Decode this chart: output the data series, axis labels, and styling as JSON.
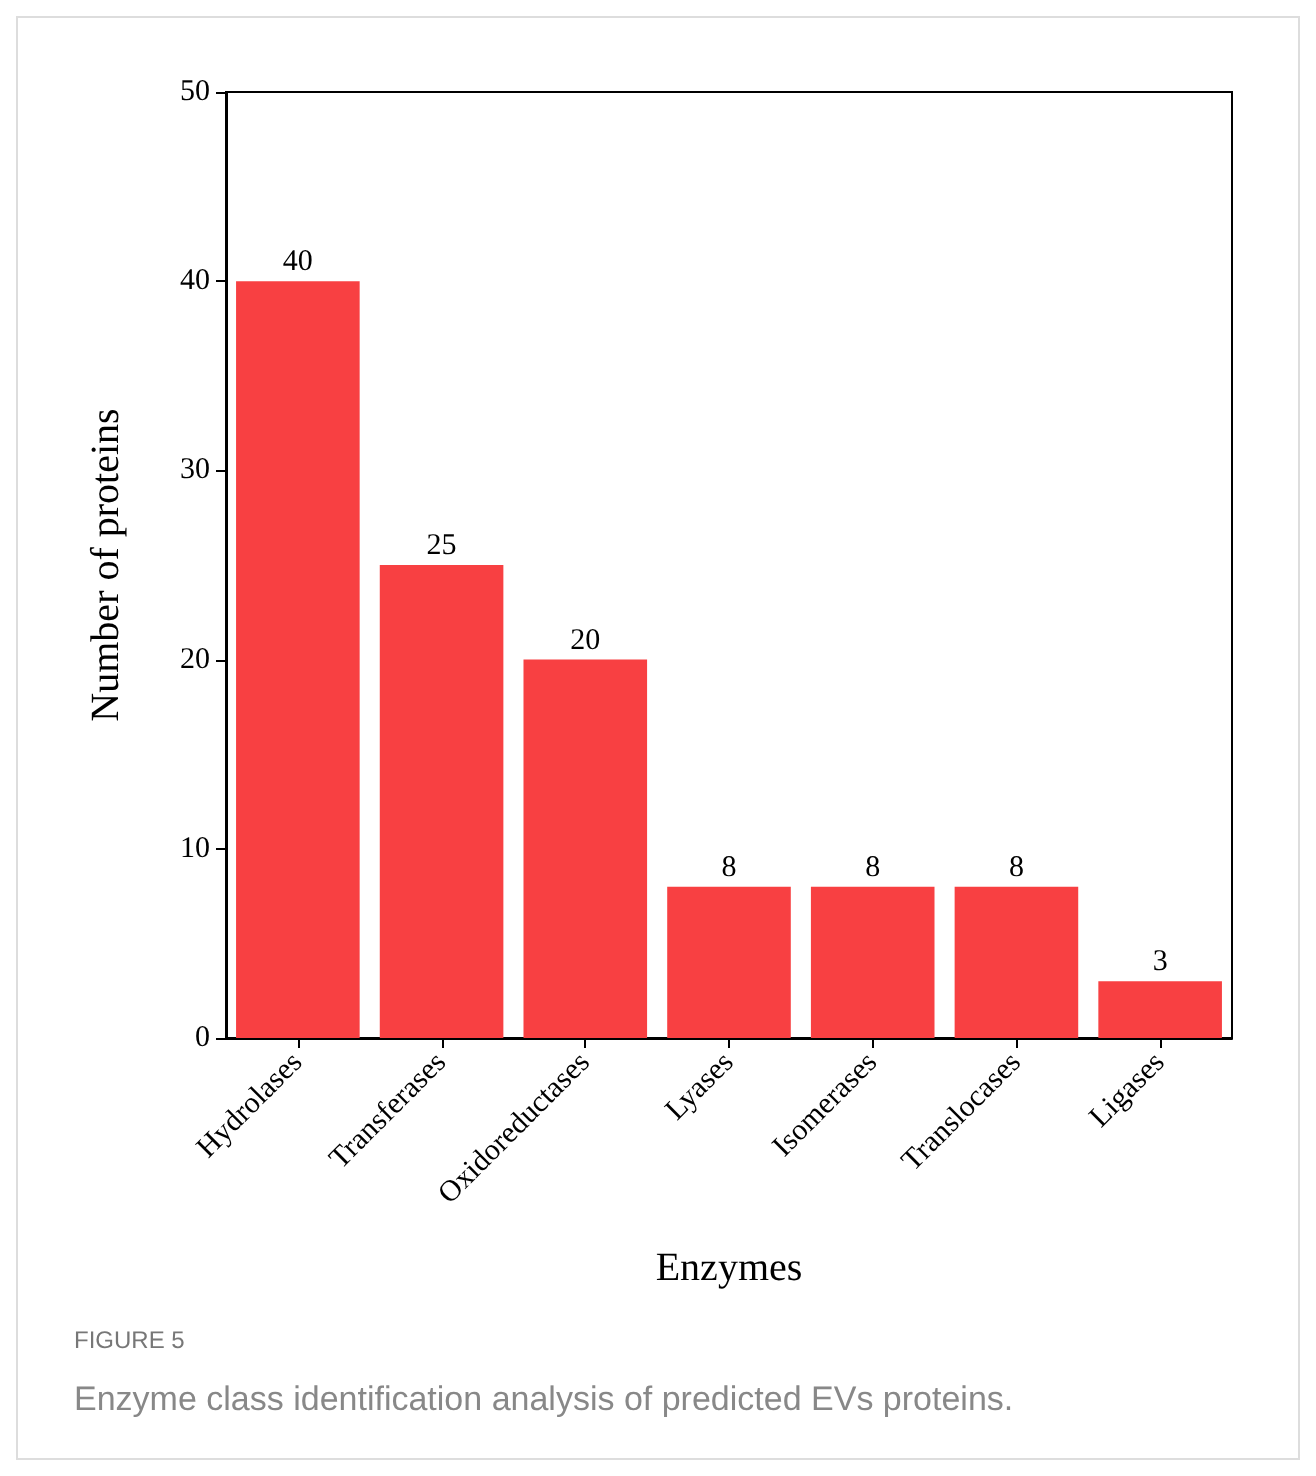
{
  "chart_data": {
    "type": "bar",
    "xlabel": "Enzymes",
    "ylabel": "Number of proteins",
    "categories": [
      "Hydrolases",
      "Transferases",
      "Oxidoreductases",
      "Lyases",
      "Isomerases",
      "Translocases",
      "Ligases"
    ],
    "values": [
      40,
      25,
      20,
      8,
      8,
      8,
      3
    ],
    "color": "#f84042",
    "ylim": [
      0,
      50
    ],
    "yticks": [
      0,
      10,
      20,
      30,
      40,
      50
    ],
    "data_labels": true,
    "grid": false,
    "annotations": [
      "FIGURE 5",
      "Enzyme class identification analysis of predicted EVs proteins."
    ]
  }
}
